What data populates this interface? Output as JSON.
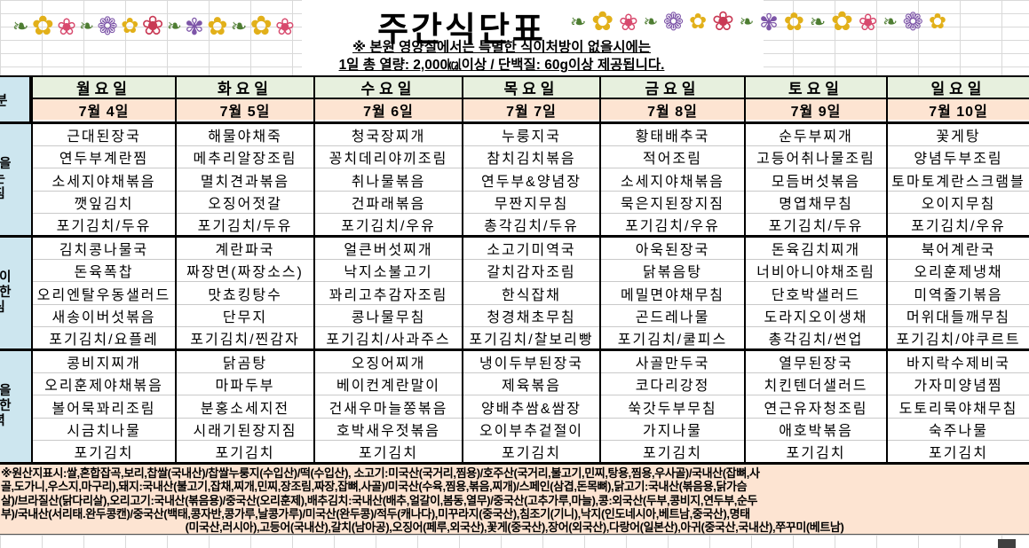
{
  "title": "주간식단표",
  "notice": {
    "line1": "※ 본원 영양실에서는 특별한 식이처방이 없을시에는",
    "line2": "1일 총 열량: 2,000㎉이상 / 단백질: 60g이상 제공됩니다."
  },
  "header": {
    "corner": "구 분",
    "days": [
      "월요일",
      "화요일",
      "수요일",
      "목요일",
      "금요일",
      "토요일",
      "일요일"
    ],
    "dates": [
      "7월 4일",
      "7월 5일",
      "7월 6일",
      "7월 7일",
      "7월 8일",
      "7월 9일",
      "7월 10일"
    ]
  },
  "meals": [
    {
      "label": "행복을 여는 아침",
      "label_lines": [
        "행복을",
        "여는",
        "아침"
      ],
      "columns": [
        [
          "근대된장국",
          "연두부계란찜",
          "소세지야채볶음",
          "깻잎김치",
          "포기김치/두유"
        ],
        [
          "해물야채죽",
          "메추리알장조림",
          "멸치견과볶음",
          "오징어젓갈",
          "포기김치/두유"
        ],
        [
          "청국장찌개",
          "꽁치데리야끼조림",
          "취나물볶음",
          "건파래볶음",
          "포기김치/우유"
        ],
        [
          "누룽지국",
          "참치김치볶음",
          "연두부&양념장",
          "무짠지무침",
          "총각김치/두유"
        ],
        [
          "황태배추국",
          "적어조림",
          "소세지야채볶음",
          "묵은지된장지짐",
          "포기김치/우유"
        ],
        [
          "순두부찌개",
          "고등어취나물조림",
          "모듬버섯볶음",
          "명엽채무침",
          "포기김치/두유"
        ],
        [
          "꽃게탕",
          "양념두부조림",
          "토마토계란스크램블",
          "오이지무침",
          "포기김치/우유"
        ]
      ]
    },
    {
      "label": "정성이 가득한 점심",
      "label_lines": [
        "정성이",
        "가득한",
        "점심"
      ],
      "columns": [
        [
          "김치콩나물국",
          "돈육폭찹",
          "오리엔탈우동샐러드",
          "새송이버섯볶음",
          "포기김치/요플레"
        ],
        [
          "계란파국",
          "짜장면(짜장소스)",
          "맛쵸킹탕수",
          "단무지",
          "포기김치/찐감자"
        ],
        [
          "얼큰버섯찌개",
          "낙지소불고기",
          "꽈리고추감자조림",
          "콩나물무침",
          "포기김치/사과주스"
        ],
        [
          "소고기미역국",
          "갈치감자조림",
          "한식잡채",
          "청경채초무침",
          "포기김치/찰보리빵"
        ],
        [
          "아욱된장국",
          "닭볶음탕",
          "메밀면야채무침",
          "곤드레나물",
          "포기김치/쿨피스"
        ],
        [
          "돈육김치찌개",
          "너비아니야채조림",
          "단호박샐러드",
          "도라지오이생채",
          "총각김치/썬업"
        ],
        [
          "북어계란국",
          "오리훈제냉채",
          "미역줄기볶음",
          "머위대들깨무침",
          "포기김치/야쿠르트"
        ]
      ]
    },
    {
      "label": "건강을 생각한 저녁",
      "label_lines": [
        "건강을",
        "생각한",
        "저녁"
      ],
      "columns": [
        [
          "콩비지찌개",
          "오리훈제야채볶음",
          "볼어묵꽈리조림",
          "시금치나물",
          "포기김치"
        ],
        [
          "닭곰탕",
          "마파두부",
          "분홍소세지전",
          "시래기된장지짐",
          "포기김치"
        ],
        [
          "오징어찌개",
          "베이컨계란말이",
          "건새우마늘쫑볶음",
          "호박새우젓볶음",
          "포기김치"
        ],
        [
          "냉이두부된장국",
          "제육볶음",
          "양배추쌈&쌈장",
          "오이부추겉절이",
          "포기김치"
        ],
        [
          "사골만두국",
          "코다리강정",
          "쑥갓두부무침",
          "가지나물",
          "포기김치"
        ],
        [
          "열무된장국",
          "치킨텐더샐러드",
          "연근유자청조림",
          "애호박볶음",
          "포기김치"
        ],
        [
          "바지락수제비국",
          "가자미양념찜",
          "도토리묵야채무침",
          "숙주나물",
          "포기김치"
        ]
      ]
    }
  ],
  "origin_notice": {
    "lines": [
      "※원산지표시:쌀,혼합잡곡,보리,찹쌀(국내산)/찹쌀누룽지(수입산)/떡(수입산), 소고기:미국산(국거리,찜용)/호주산(국거리,불고기,민찌,탕용,찜용,우사골)/국내산(잡뼈,사",
      "골,도가니,우스지,마구리),돼지:국내산(불고기,잡채,찌개,민찌,장조림,짜장,잡뼈,사골)/미국산(수육,찜용,볶음,찌개)/스페인(삼겹,돈목뼈),닭고기:국내산(볶음용,닭가슴",
      "살)/브라질산(닭다리살),오리고기:국내산(볶음용)/중국산(오리훈제),배추김치:국내산(배추,얼갈이,봄동,열무)/중국산(고추가루,마늘),콩:외국산(두부,콩비지,연두부,순두",
      "부)/국내산(서리태.완두콩캔)/중국산(백태,콩자반,콩가루,날콩가루)/미국산(완두콩)/적두(캐나다),미꾸라지(중국산),침조기(기니),낙지(인도네시아,베트남,중국산),명태",
      "(미국산,러시아),고등어(국내산),갈치(남아공),오징어(페루,외국산),꽃게(중국산),장어(외국산),다랑어(일본산),아귀(중국산,국내산),쭈꾸미(베트남)"
    ]
  },
  "decor": {
    "garland": {
      "glyphs": [
        "❧",
        "✿",
        "❀",
        "❧",
        "❁",
        "✿",
        "❀",
        "❧",
        "✾",
        "✿"
      ],
      "colors": [
        "#4e7d32",
        "#e2b01a",
        "#d84a6e",
        "#4e7d32",
        "#7d55a8",
        "#e2b01a",
        "#c93a55",
        "#4e7d32",
        "#7d55a8",
        "#e2b01a"
      ]
    }
  },
  "colors": {
    "day_header_bg": "#e7f0de",
    "date_row_bg": "#fde4d2",
    "label_col_bg": "#cde6ef",
    "origin_bg": "#fde4d2",
    "grid_line": "#d9d9d9",
    "border": "#000000"
  }
}
